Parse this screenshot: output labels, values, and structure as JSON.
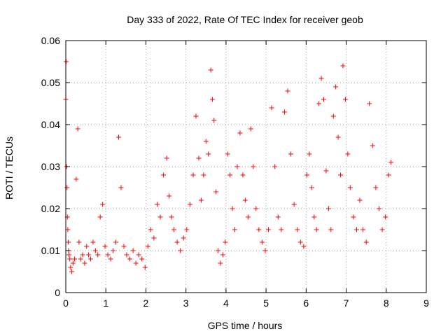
{
  "chart_data": {
    "type": "scatter",
    "title": "Day 333 of 2022, Rate Of TEC Index for receiver geob",
    "xlabel": "GPS time / hours",
    "ylabel": "ROTI / TECUs",
    "xlim": [
      0,
      9
    ],
    "ylim": [
      0,
      0.06
    ],
    "x_ticks": [
      "0",
      "1",
      "2",
      "3",
      "4",
      "5",
      "6",
      "7",
      "8",
      "9"
    ],
    "y_ticks": [
      "0",
      "0.01",
      "0.02",
      "0.03",
      "0.04",
      "0.05",
      "0.06"
    ],
    "grid": true,
    "marker": "+",
    "series_color": "#ff0000",
    "series": [
      {
        "x": [
          0.0,
          0.01,
          0.02,
          0.03,
          0.04,
          0.05,
          0.06,
          0.07,
          0.08,
          0.1,
          0.12,
          0.15,
          0.18,
          0.22,
          0.26,
          0.3,
          0.33,
          0.37,
          0.42,
          0.47,
          0.52,
          0.57,
          0.62,
          0.68,
          0.74,
          0.8,
          0.86,
          0.92,
          0.98,
          1.05,
          1.12,
          1.18,
          1.25,
          1.32,
          1.38,
          1.45,
          1.52,
          1.6,
          1.68,
          1.75,
          1.82,
          1.9,
          1.98,
          2.05,
          2.12,
          2.2,
          2.28,
          2.36,
          2.44,
          2.52,
          2.58,
          2.64,
          2.7,
          2.78,
          2.86,
          2.94,
          3.02,
          3.1,
          3.18,
          3.25,
          3.32,
          3.38,
          3.44,
          3.5,
          3.56,
          3.62,
          3.66,
          3.7,
          3.75,
          3.8,
          3.86,
          3.92,
          3.98,
          4.04,
          4.1,
          4.16,
          4.22,
          4.28,
          4.35,
          4.42,
          4.48,
          4.55,
          4.62,
          4.68,
          4.75,
          4.82,
          4.9,
          4.98,
          5.06,
          5.14,
          5.22,
          5.3,
          5.38,
          5.46,
          5.54,
          5.62,
          5.7,
          5.78,
          5.86,
          5.94,
          6.02,
          6.08,
          6.14,
          6.2,
          6.26,
          6.32,
          6.38,
          6.44,
          6.5,
          6.56,
          6.62,
          6.68,
          6.74,
          6.8,
          6.86,
          6.92,
          6.98,
          7.04,
          7.1,
          7.18,
          7.26,
          7.34,
          7.42,
          7.5,
          7.58,
          7.66,
          7.74,
          7.82,
          7.9,
          7.98,
          8.06,
          8.12
        ],
        "y": [
          0.046,
          0.055,
          0.03,
          0.025,
          0.018,
          0.015,
          0.012,
          0.01,
          0.009,
          0.008,
          0.006,
          0.005,
          0.007,
          0.008,
          0.027,
          0.039,
          0.012,
          0.008,
          0.009,
          0.007,
          0.011,
          0.009,
          0.008,
          0.012,
          0.01,
          0.009,
          0.018,
          0.021,
          0.011,
          0.009,
          0.008,
          0.01,
          0.012,
          0.037,
          0.025,
          0.011,
          0.009,
          0.008,
          0.01,
          0.007,
          0.009,
          0.008,
          0.006,
          0.011,
          0.015,
          0.013,
          0.021,
          0.018,
          0.028,
          0.032,
          0.023,
          0.018,
          0.015,
          0.012,
          0.01,
          0.013,
          0.015,
          0.021,
          0.028,
          0.042,
          0.032,
          0.022,
          0.028,
          0.036,
          0.033,
          0.053,
          0.046,
          0.041,
          0.024,
          0.01,
          0.007,
          0.009,
          0.012,
          0.033,
          0.028,
          0.02,
          0.015,
          0.03,
          0.038,
          0.028,
          0.022,
          0.018,
          0.039,
          0.03,
          0.02,
          0.015,
          0.012,
          0.01,
          0.015,
          0.044,
          0.03,
          0.018,
          0.015,
          0.043,
          0.048,
          0.033,
          0.021,
          0.015,
          0.012,
          0.011,
          0.028,
          0.033,
          0.025,
          0.018,
          0.015,
          0.045,
          0.051,
          0.046,
          0.029,
          0.02,
          0.015,
          0.042,
          0.049,
          0.037,
          0.028,
          0.054,
          0.046,
          0.033,
          0.025,
          0.018,
          0.015,
          0.022,
          0.015,
          0.012,
          0.045,
          0.035,
          0.025,
          0.02,
          0.015,
          0.018,
          0.028,
          0.031
        ]
      }
    ]
  }
}
